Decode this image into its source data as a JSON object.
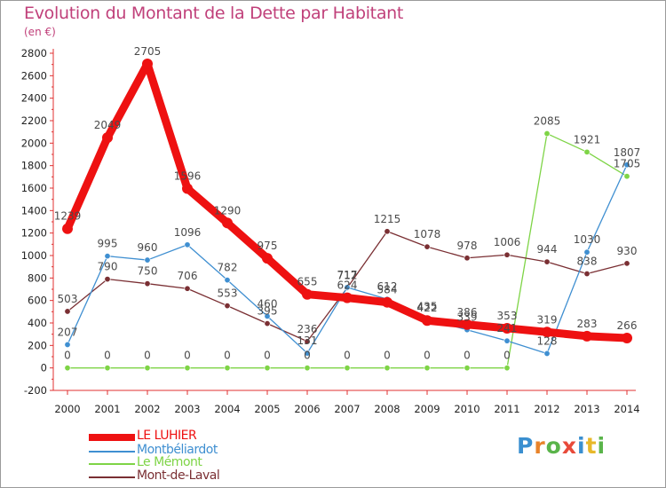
{
  "header": {
    "title": "Evolution du Montant de la Dette par Habitant",
    "unit": "(en €)"
  },
  "logo": {
    "letters": [
      "P",
      "r",
      "o",
      "x",
      "i",
      "t",
      "i"
    ],
    "colors": [
      "#3a8fd0",
      "#e8832a",
      "#5ab44a",
      "#e84a3a",
      "#3a8fd0",
      "#e8b82a",
      "#5ab44a"
    ]
  },
  "chart_data": {
    "type": "line",
    "title": "Evolution du Montant de la Dette par Habitant",
    "ylabel": "(en €)",
    "xlabel": "",
    "x": [
      "2000",
      "2001",
      "2002",
      "2003",
      "2004",
      "2005",
      "2006",
      "2007",
      "2008",
      "2009",
      "2010",
      "2011",
      "2012",
      "2013",
      "2014"
    ],
    "yticks": [
      "-200",
      "0",
      "200",
      "400",
      "600",
      "800",
      "1000",
      "1200",
      "1400",
      "1600",
      "1800",
      "2000",
      "2200",
      "2400",
      "2600",
      "2800"
    ],
    "ylim": [
      -200,
      2800
    ],
    "grid": false,
    "legend": "bottom",
    "series": [
      {
        "name": "LE LUHIER",
        "color": "#ee1111",
        "values": [
          1239,
          2049,
          2705,
          1596,
          1290,
          975,
          655,
          624,
          584,
          422,
          386,
          353,
          319,
          283,
          266
        ]
      },
      {
        "name": "Montbéliardot",
        "color": "#3f8fd1",
        "values": [
          207,
          995,
          960,
          1096,
          782,
          460,
          131,
          717,
          612,
          435,
          339,
          241,
          128,
          1030,
          1807
        ]
      },
      {
        "name": "Le Mémont",
        "color": "#7ed446",
        "values": [
          0,
          0,
          0,
          0,
          0,
          0,
          0,
          0,
          0,
          0,
          0,
          0,
          2085,
          1921,
          1705
        ]
      },
      {
        "name": "Mont-de-Laval",
        "color": "#7a2f33",
        "values": [
          503,
          790,
          750,
          706,
          553,
          395,
          236,
          712,
          1215,
          1078,
          978,
          1006,
          944,
          838,
          930
        ]
      }
    ],
    "data_labels": [
      [
        "1239",
        "2049",
        "2705",
        "1596",
        "1290",
        "975",
        "655",
        "624",
        "584",
        "422",
        "386",
        "353",
        "319",
        "283",
        "266"
      ],
      [
        "207",
        "995",
        "960",
        "1096",
        "782",
        "460",
        "131",
        "717",
        "612",
        "435",
        "339",
        "241",
        "128",
        "1030",
        "1807"
      ],
      [
        "0",
        "0",
        "0",
        "0",
        "0",
        "0",
        "0",
        "0",
        "0",
        "0",
        "0",
        "0",
        "2085",
        "1921",
        "1705"
      ],
      [
        "503",
        "790",
        "750",
        "706",
        "553",
        "395",
        "236",
        "712",
        "1215",
        "1078",
        "978",
        "1006",
        "944",
        "838",
        "930"
      ]
    ]
  }
}
